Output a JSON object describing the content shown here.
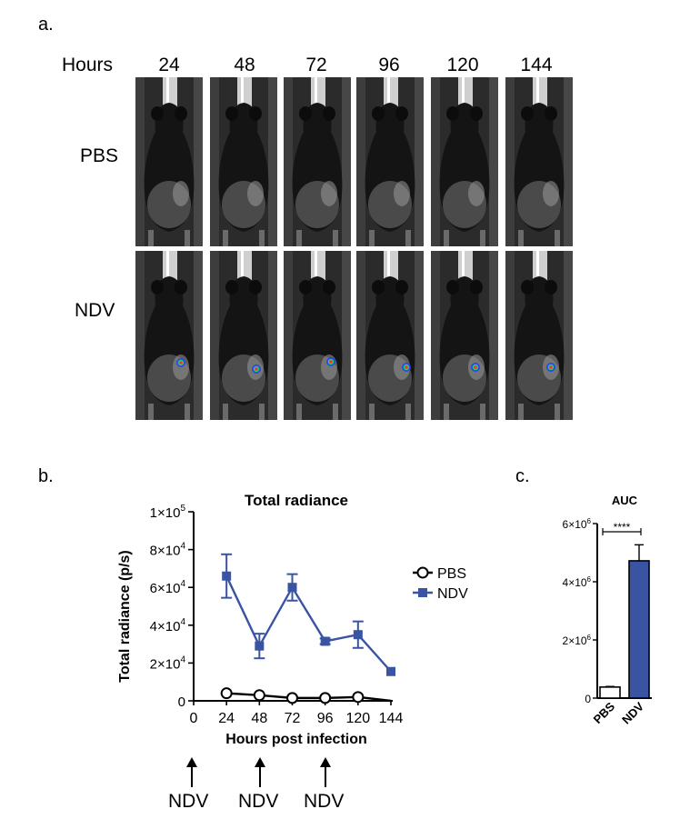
{
  "panel_a": {
    "label": "a.",
    "hours_label": "Hours",
    "timepoints": [
      "24",
      "48",
      "72",
      "96",
      "120",
      "144"
    ],
    "rows": [
      "PBS",
      "NDV"
    ]
  },
  "panel_b": {
    "label": "b.",
    "treatment_labels": [
      "NDV",
      "NDV",
      "NDV"
    ]
  },
  "panel_c": {
    "label": "c."
  },
  "chart_data": [
    {
      "type": "line",
      "title": "Total radiance",
      "xlabel": "Hours post infection",
      "ylabel": "Total radiance (p/s)",
      "x_ticks": [
        "0",
        "24",
        "48",
        "72",
        "96",
        "120",
        "144"
      ],
      "xlim": [
        0,
        144
      ],
      "ylim": [
        0,
        100000
      ],
      "y_ticks": [
        {
          "base": "0",
          "exp": ""
        },
        {
          "base": "2×10",
          "exp": "4"
        },
        {
          "base": "4×10",
          "exp": "4"
        },
        {
          "base": "6×10",
          "exp": "4"
        },
        {
          "base": "8×10",
          "exp": "4"
        },
        {
          "base": "1×10",
          "exp": "5"
        }
      ],
      "legend_position": "right",
      "series": [
        {
          "name": "PBS",
          "marker": "open-circle",
          "color": "#000000",
          "x": [
            24,
            48,
            72,
            96,
            120,
            144
          ],
          "y": [
            4000,
            3000,
            1500,
            1500,
            2000,
            0
          ],
          "err": [
            0,
            0,
            0,
            0,
            0,
            0
          ],
          "marked": [
            true,
            true,
            true,
            true,
            true,
            false
          ]
        },
        {
          "name": "NDV",
          "marker": "square",
          "color": "#3a54a4",
          "x": [
            24,
            48,
            72,
            96,
            120,
            144
          ],
          "y": [
            66000,
            29000,
            60000,
            31500,
            35000,
            15500
          ],
          "err": [
            11500,
            6500,
            7000,
            1500,
            7000,
            0
          ],
          "marked": [
            true,
            true,
            true,
            true,
            true,
            true
          ]
        }
      ],
      "treatments_at_hours": [
        0,
        48,
        96
      ]
    },
    {
      "type": "bar",
      "title": "AUC",
      "categories": [
        "PBS",
        "NDV"
      ],
      "values": [
        380000,
        4720000
      ],
      "errors": [
        20000,
        550000
      ],
      "colors": [
        "#ffffff",
        "#3a54a4"
      ],
      "ylim": [
        0,
        6000000
      ],
      "y_ticks": [
        {
          "base": "0",
          "exp": ""
        },
        {
          "base": "2×10",
          "exp": "6"
        },
        {
          "base": "4×10",
          "exp": "6"
        },
        {
          "base": "6×10",
          "exp": "6"
        }
      ],
      "significance": "****"
    }
  ]
}
